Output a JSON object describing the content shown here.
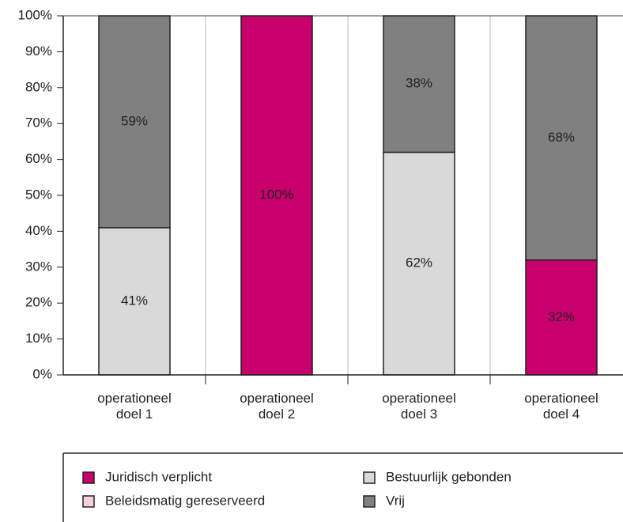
{
  "chart_data": {
    "type": "stacked-bar",
    "categories": [
      "operationeel doel 1",
      "operationeel doel 2",
      "operationeel doel 3",
      "operationeel doel 4"
    ],
    "series": [
      {
        "name": "Juridisch verplicht",
        "color": "#c8006e",
        "values": [
          0,
          100,
          0,
          32
        ],
        "value_labels": [
          null,
          "100%",
          null,
          "32%"
        ]
      },
      {
        "name": "Beleidsmatig gereserveerd",
        "color": "#f5cfdc",
        "values": [
          0,
          0,
          0,
          0
        ],
        "value_labels": [
          null,
          null,
          null,
          null
        ]
      },
      {
        "name": "Bestuurlijk gebonden",
        "color": "#d9d9d9",
        "values": [
          41,
          0,
          62,
          0
        ],
        "value_labels": [
          "41%",
          null,
          "62%",
          null
        ]
      },
      {
        "name": "Vrij",
        "color": "#808080",
        "values": [
          59,
          0,
          38,
          68
        ],
        "value_labels": [
          "59%",
          null,
          "38%",
          "68%"
        ]
      }
    ],
    "ylim": [
      0,
      100
    ],
    "yticks": [
      {
        "value": 0,
        "label": "0%"
      },
      {
        "value": 10,
        "label": "10%"
      },
      {
        "value": 20,
        "label": "20%"
      },
      {
        "value": 30,
        "label": "30%"
      },
      {
        "value": 40,
        "label": "40%"
      },
      {
        "value": 50,
        "label": "50%"
      },
      {
        "value": 60,
        "label": "60%"
      },
      {
        "value": 70,
        "label": "70%"
      },
      {
        "value": 80,
        "label": "80%"
      },
      {
        "value": 90,
        "label": "90%"
      },
      {
        "value": 100,
        "label": "100%"
      }
    ],
    "grid": true
  }
}
